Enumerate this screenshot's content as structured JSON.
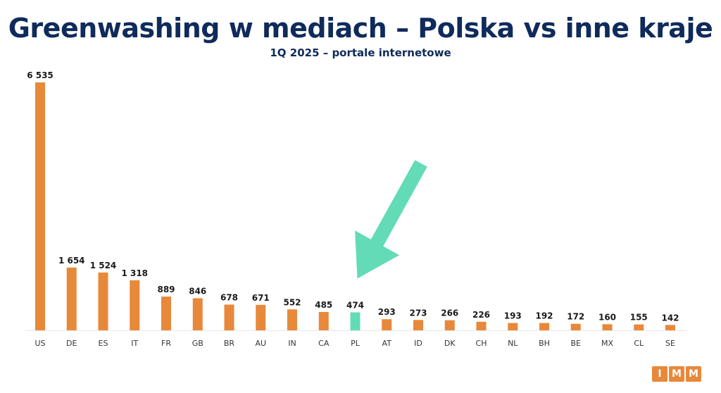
{
  "header": {
    "title": "Greenwashing w mediach – Polska vs inne kraje",
    "subtitle": "1Q 2025 – portale internetowe"
  },
  "colors": {
    "bar_default": "#e8883a",
    "bar_highlight": "#62dbb6",
    "arrow": "#62dbb6",
    "title": "#0f2b5b",
    "label": "#1a1a1a",
    "axis": "#e6e6e6"
  },
  "logo": {
    "letters": [
      "I",
      "M",
      "M"
    ]
  },
  "chart_data": {
    "type": "bar",
    "categories": [
      "US",
      "DE",
      "ES",
      "IT",
      "FR",
      "GB",
      "BR",
      "AU",
      "IN",
      "CA",
      "PL",
      "AT",
      "ID",
      "DK",
      "CH",
      "NL",
      "BH",
      "BE",
      "MX",
      "CL",
      "SE"
    ],
    "values": [
      6535,
      1654,
      1524,
      1318,
      889,
      846,
      678,
      671,
      552,
      485,
      474,
      293,
      273,
      266,
      226,
      193,
      192,
      172,
      160,
      155,
      142
    ],
    "value_labels": [
      "6 535",
      "1 654",
      "1 524",
      "1 318",
      "889",
      "846",
      "678",
      "671",
      "552",
      "485",
      "474",
      "293",
      "273",
      "266",
      "226",
      "193",
      "192",
      "172",
      "160",
      "155",
      "142"
    ],
    "highlight": "PL",
    "annotation": "arrow pointing to PL",
    "title": "Greenwashing w mediach – Polska vs inne kraje",
    "subtitle": "1Q 2025 – portale internetowe",
    "xlabel": "",
    "ylabel": "",
    "ylim": [
      0,
      6535
    ],
    "grid": false,
    "legend": "none"
  }
}
